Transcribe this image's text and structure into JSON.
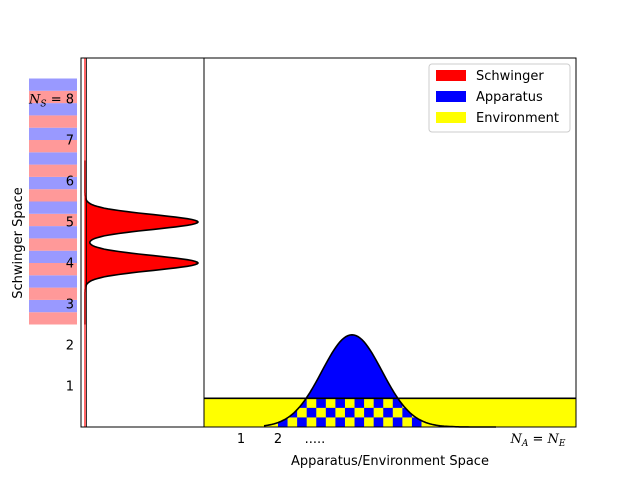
{
  "chart_data": {
    "type": "area",
    "title": "",
    "xlabel": "Apparatus/Environment Space",
    "ylabel": "Schwinger Space",
    "y_axis": {
      "range": [
        0,
        9
      ],
      "tick_values": [
        1,
        2,
        3,
        4,
        5,
        6,
        7,
        8
      ],
      "tick_labels": [
        "1",
        "2",
        "3",
        "4",
        "5",
        "6",
        "7",
        "N_S = 8"
      ]
    },
    "x_axis": {
      "tick_labels": [
        "1",
        "2",
        ".....",
        "N_A = N_E"
      ]
    },
    "schwinger_band": {
      "from": 2.5,
      "to": 8.5,
      "stripe_count": 20,
      "colors": [
        "#ff9999",
        "#9999ff"
      ]
    },
    "schwinger_profile": {
      "peaks": [
        4.0,
        5.0
      ],
      "sigma": 0.18,
      "baseline": 0.0
    },
    "legend": {
      "placement": "top-right",
      "entries": [
        {
          "name": "Schwinger",
          "color": "#ff0000"
        },
        {
          "name": "Apparatus",
          "color": "#0000ff"
        },
        {
          "name": "Environment",
          "color": "#ffff00"
        }
      ]
    },
    "environment_band": {
      "level": 0.7,
      "color": "#ffff00"
    },
    "apparatus_peak": {
      "center": 0.4,
      "height": 2.25,
      "color": "#0000ff"
    },
    "checkerboard": {
      "rows": 3,
      "colors": [
        "#0000ff",
        "#ffff00"
      ]
    },
    "colors": {
      "schwinger": "#ff0000",
      "apparatus": "#0000ff",
      "environment": "#ffff00",
      "stripe_a": "#ff9999",
      "stripe_b": "#9999ff",
      "outline": "#000000"
    }
  }
}
